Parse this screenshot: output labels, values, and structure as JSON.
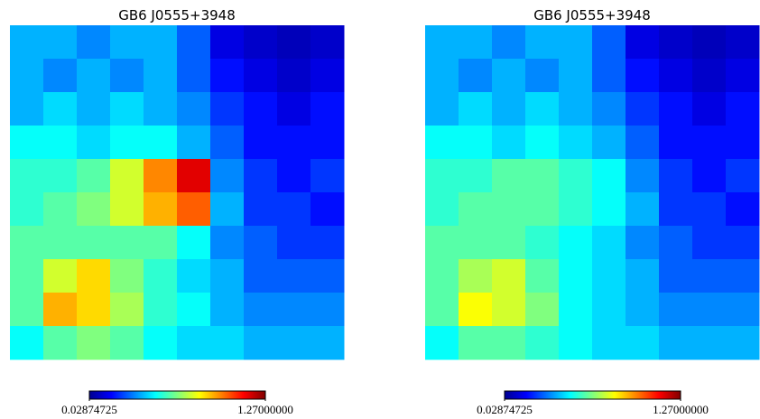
{
  "chart_data": [
    {
      "type": "heatmap",
      "title": "GB6 J0555+3948",
      "colormap": "jet",
      "values": [
        [
          0.4,
          0.4,
          0.35,
          0.4,
          0.4,
          0.3,
          0.15,
          0.12,
          0.1,
          0.12
        ],
        [
          0.4,
          0.35,
          0.4,
          0.35,
          0.4,
          0.3,
          0.2,
          0.15,
          0.12,
          0.15
        ],
        [
          0.4,
          0.45,
          0.4,
          0.45,
          0.4,
          0.35,
          0.25,
          0.2,
          0.15,
          0.2
        ],
        [
          0.5,
          0.5,
          0.45,
          0.5,
          0.5,
          0.4,
          0.3,
          0.2,
          0.2,
          0.2
        ],
        [
          0.55,
          0.55,
          0.6,
          0.75,
          0.95,
          1.15,
          0.35,
          0.25,
          0.2,
          0.25
        ],
        [
          0.55,
          0.6,
          0.65,
          0.75,
          0.9,
          1.0,
          0.4,
          0.25,
          0.25,
          0.2
        ],
        [
          0.6,
          0.6,
          0.6,
          0.6,
          0.6,
          0.5,
          0.35,
          0.3,
          0.25,
          0.25
        ],
        [
          0.6,
          0.75,
          0.85,
          0.65,
          0.55,
          0.45,
          0.4,
          0.3,
          0.3,
          0.3
        ],
        [
          0.6,
          0.9,
          0.85,
          0.7,
          0.55,
          0.5,
          0.4,
          0.35,
          0.35,
          0.35
        ],
        [
          0.5,
          0.6,
          0.65,
          0.6,
          0.5,
          0.45,
          0.45,
          0.4,
          0.4,
          0.4
        ]
      ],
      "vlim": [
        0.02874725,
        1.27
      ],
      "cticks": [
        0.02874725,
        {
          "value": 1.27,
          "label": "1.27000000"
        }
      ]
    },
    {
      "type": "heatmap",
      "title": "GB6 J0555+3948",
      "colormap": "jet",
      "values": [
        [
          0.4,
          0.4,
          0.35,
          0.4,
          0.4,
          0.3,
          0.15,
          0.12,
          0.1,
          0.12
        ],
        [
          0.4,
          0.35,
          0.4,
          0.35,
          0.4,
          0.3,
          0.2,
          0.15,
          0.12,
          0.15
        ],
        [
          0.4,
          0.45,
          0.4,
          0.45,
          0.4,
          0.35,
          0.25,
          0.2,
          0.15,
          0.2
        ],
        [
          0.5,
          0.5,
          0.45,
          0.5,
          0.45,
          0.4,
          0.3,
          0.2,
          0.2,
          0.2
        ],
        [
          0.55,
          0.55,
          0.6,
          0.6,
          0.55,
          0.5,
          0.35,
          0.25,
          0.2,
          0.25
        ],
        [
          0.55,
          0.6,
          0.6,
          0.6,
          0.55,
          0.5,
          0.4,
          0.25,
          0.25,
          0.2
        ],
        [
          0.6,
          0.6,
          0.6,
          0.55,
          0.5,
          0.45,
          0.35,
          0.3,
          0.25,
          0.25
        ],
        [
          0.6,
          0.7,
          0.75,
          0.6,
          0.5,
          0.45,
          0.4,
          0.3,
          0.3,
          0.3
        ],
        [
          0.6,
          0.8,
          0.75,
          0.65,
          0.5,
          0.45,
          0.4,
          0.35,
          0.35,
          0.35
        ],
        [
          0.5,
          0.6,
          0.6,
          0.55,
          0.5,
          0.45,
          0.45,
          0.4,
          0.4,
          0.4
        ]
      ],
      "vlim": [
        0.02874725,
        1.27
      ],
      "cticks": [
        0.02874725,
        {
          "value": 1.27,
          "label": "1.27000000"
        }
      ]
    }
  ]
}
